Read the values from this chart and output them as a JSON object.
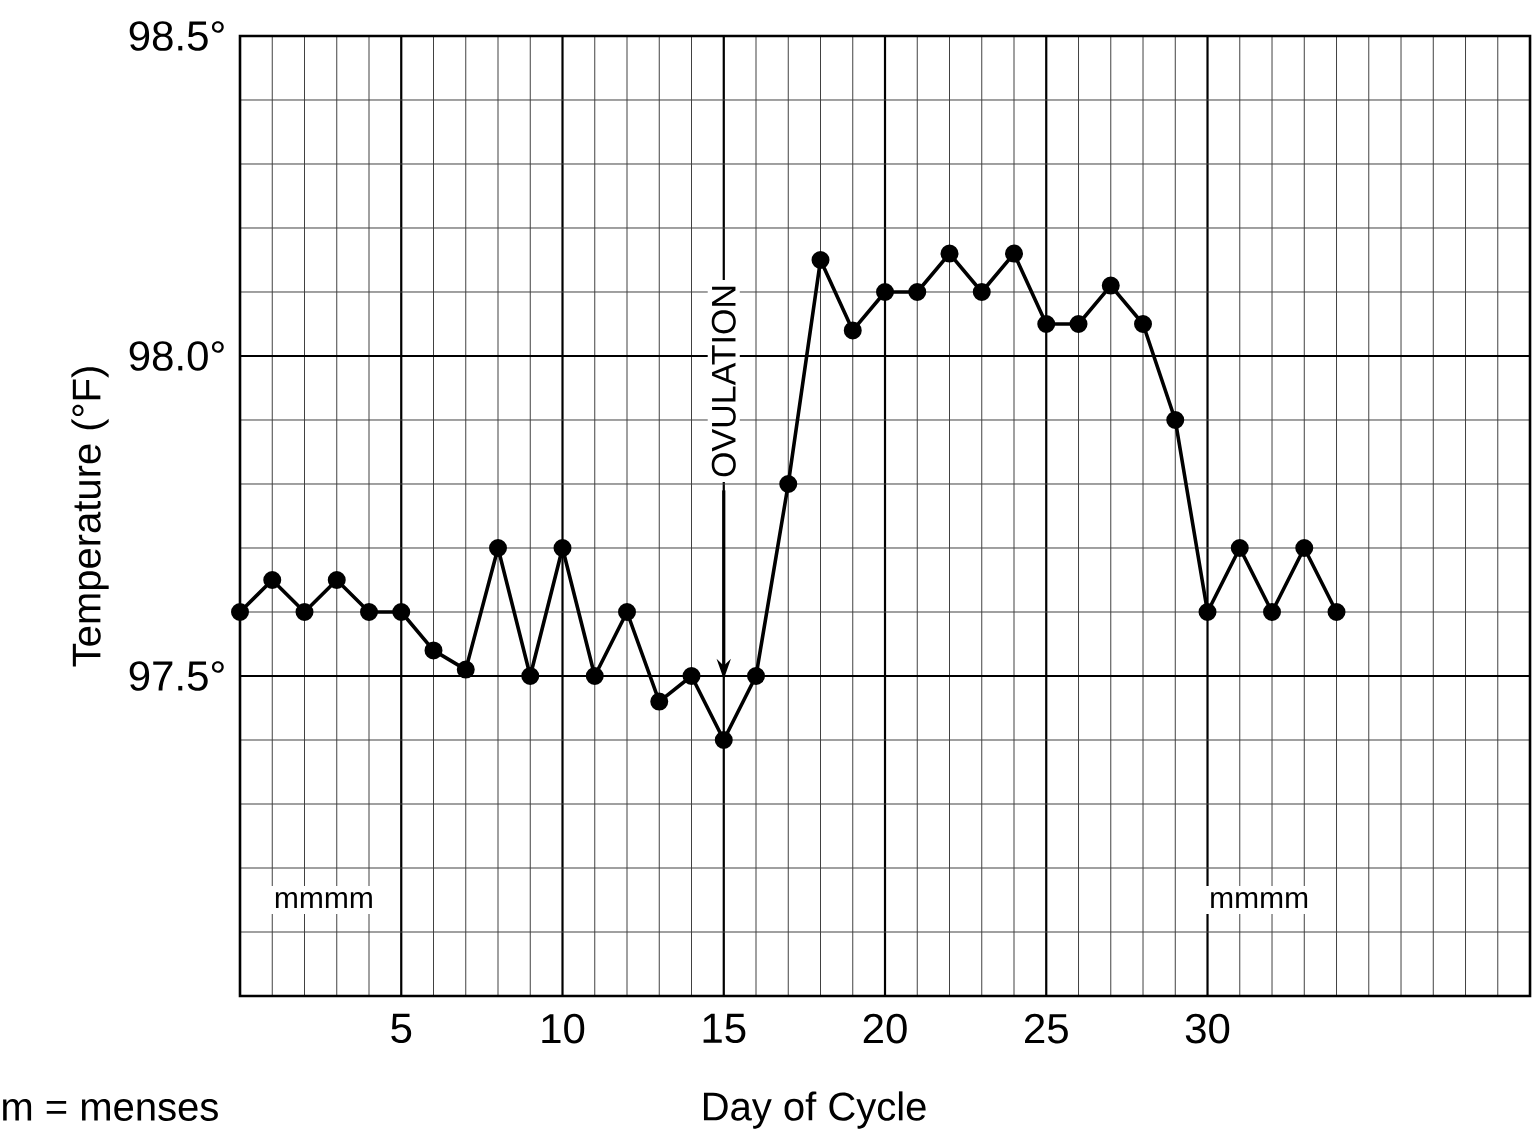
{
  "chart_data": {
    "type": "line",
    "xlabel": "Day of Cycle",
    "ylabel": "Temperature (°F)",
    "x": [
      0,
      1,
      2,
      3,
      4,
      5,
      6,
      7,
      8,
      9,
      10,
      11,
      12,
      13,
      14,
      15,
      16,
      17,
      18,
      19,
      20,
      21,
      22,
      23,
      24,
      25,
      26,
      27,
      28,
      29,
      30,
      31,
      32,
      33,
      34
    ],
    "series": [
      {
        "color": "#000000",
        "values": [
          97.6,
          97.65,
          97.6,
          97.65,
          97.6,
          97.6,
          97.54,
          97.51,
          97.7,
          97.5,
          97.7,
          97.5,
          97.6,
          97.46,
          97.5,
          97.4,
          97.5,
          97.8,
          98.15,
          98.04,
          98.1,
          98.1,
          98.16,
          98.1,
          98.16,
          98.05,
          98.05,
          98.11,
          98.05,
          97.9,
          97.6,
          97.7,
          97.6,
          97.7,
          97.6
        ]
      }
    ],
    "xlim": [
      0,
      40
    ],
    "ylim": [
      97.0,
      98.5
    ],
    "xticks": [
      5,
      10,
      15,
      20,
      25,
      30
    ],
    "yticks": [
      {
        "value": 97.5,
        "label": "97.5°"
      },
      {
        "value": 98.0,
        "label": "98.0°"
      },
      {
        "value": 98.5,
        "label": "98.5°"
      }
    ],
    "grid": true,
    "marker": "circle",
    "line_style": "solid",
    "annotations": [
      "OVULATION",
      "mmmm",
      "mmmm",
      "m = menses"
    ]
  }
}
